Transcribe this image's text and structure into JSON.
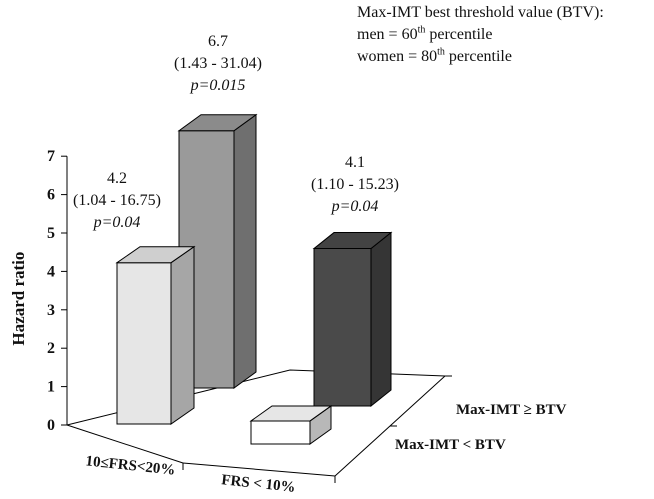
{
  "chart_data": {
    "type": "bar",
    "bars": [
      {
        "frs": "10≤FRS<20%",
        "group": "Max-IMT ≥ BTV",
        "value": 4.2,
        "label": "4.2",
        "ci": "(1.04 - 16.75)",
        "p": "p=0.04",
        "color": "#e6e6e6"
      },
      {
        "frs": "FRS < 10%",
        "group": "Max-IMT ≥ BTV",
        "value": 6.7,
        "label": "6.7",
        "ci": "(1.43 - 31.04)",
        "p": "p=0.015",
        "color": "#9a9a9a"
      },
      {
        "frs": "FRS < 10%",
        "group": "Max-IMT ≥ BTV",
        "value": 4.1,
        "label": "4.1",
        "ci": "(1.10 - 15.23)",
        "p": "p=0.04",
        "color": "#4a4a4a"
      },
      {
        "frs": "FRS < 10%",
        "group": "Max-IMT < BTV",
        "value": 0.6,
        "label": "",
        "ci": "",
        "p": "",
        "color": "#ffffff"
      }
    ],
    "ylabel": "Hazard ratio",
    "yticks": [
      "0",
      "1",
      "2",
      "3",
      "4",
      "5",
      "6",
      "7"
    ],
    "ylim": [
      0,
      7
    ],
    "categories_front": [
      "10≤FRS<20%",
      "FRS < 10%"
    ],
    "categories_depth": [
      "Max-IMT ≥ BTV",
      "Max-IMT < BTV"
    ]
  },
  "legend": {
    "line1": "Max-IMT best threshold value (BTV):",
    "line2_pre": "men = 60",
    "line2_sup": "th",
    "line2_post": " percentile",
    "line3_pre": "women = 80",
    "line3_sup": "th",
    "line3_post": " percentile"
  }
}
